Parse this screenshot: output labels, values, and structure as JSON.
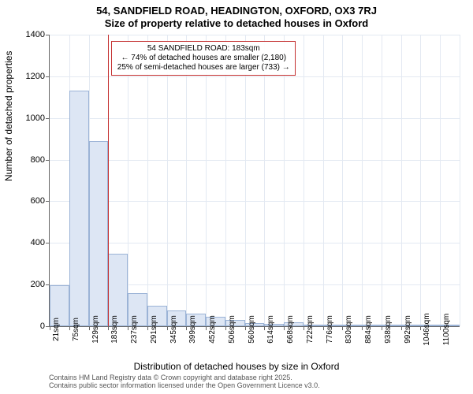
{
  "title": {
    "line1": "54, SANDFIELD ROAD, HEADINGTON, OXFORD, OX3 7RJ",
    "line2": "Size of property relative to detached houses in Oxford"
  },
  "chart": {
    "type": "histogram",
    "ylabel": "Number of detached properties",
    "xlabel": "Distribution of detached houses by size in Oxford",
    "ylim_max": 1400,
    "ytick_step": 200,
    "xtick_labels": [
      "21sqm",
      "75sqm",
      "129sqm",
      "183sqm",
      "237sqm",
      "291sqm",
      "345sqm",
      "399sqm",
      "452sqm",
      "506sqm",
      "560sqm",
      "614sqm",
      "668sqm",
      "722sqm",
      "776sqm",
      "830sqm",
      "884sqm",
      "938sqm",
      "992sqm",
      "1046sqm",
      "1100sqm"
    ],
    "values": [
      195,
      1130,
      890,
      350,
      160,
      100,
      75,
      60,
      45,
      30,
      15,
      12,
      20,
      8,
      6,
      4,
      3,
      2,
      2,
      1,
      1
    ],
    "bar_color": "#dde6f4",
    "bar_border": "#9bb3d6",
    "grid_color": "#e3e9f2",
    "axis_color": "#666666",
    "background_color": "#ffffff",
    "refline_index": 3,
    "refline_color": "#c43131"
  },
  "annotation": {
    "line1": "54 SANDFIELD ROAD: 183sqm",
    "line2": "← 74% of detached houses are smaller (2,180)",
    "line3": "25% of semi-detached houses are larger (733) →"
  },
  "footer": {
    "line1": "Contains HM Land Registry data © Crown copyright and database right 2025.",
    "line2": "Contains public sector information licensed under the Open Government Licence v3.0."
  }
}
